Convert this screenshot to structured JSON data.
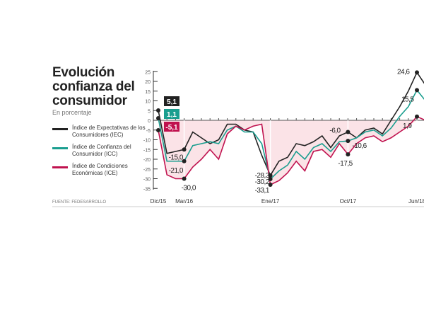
{
  "chart_data": {
    "type": "line",
    "title": "Evolución confianza del consumidor",
    "subtitle": "En porcentaje",
    "source": "FUENTE: FEDESARROLLO",
    "ylim": [
      -35,
      25
    ],
    "yticks": [
      25,
      20,
      15,
      10,
      5,
      0,
      -5,
      -10,
      -15,
      -20,
      -25,
      -30,
      -35
    ],
    "xtick_labels": [
      {
        "i": 0,
        "label": "Dic/15"
      },
      {
        "i": 3,
        "label": "Mar/16"
      },
      {
        "i": 13,
        "label": "Ene/17"
      },
      {
        "i": 22,
        "label": "Oct/17"
      },
      {
        "i": 30,
        "label": "Jun/18"
      }
    ],
    "series": [
      {
        "name": "Índice de Expectativas de los Consumidores (IEC)",
        "color": "#222222",
        "values": [
          5.1,
          -17,
          -16,
          -15.0,
          -6,
          -9,
          -12,
          -10,
          -2,
          -2,
          -5,
          -6,
          -18,
          -28.3,
          -21,
          -19,
          -12,
          -13,
          -11,
          -8,
          -14,
          -8,
          -6.0,
          -9,
          -5,
          -4,
          -7,
          0,
          7,
          15,
          24.6,
          18
        ]
      },
      {
        "name": "Índice de Confianza del Consumidor (ICC)",
        "color": "#1a9e8f",
        "values": [
          1.1,
          -21,
          -21,
          -21.0,
          -13,
          -12,
          -11,
          -12,
          -5,
          -3,
          -6,
          -6,
          -12,
          -30.2,
          -26,
          -23,
          -16,
          -20,
          -14,
          -12,
          -16,
          -11,
          -10.6,
          -9,
          -6,
          -5,
          -8,
          -4,
          2,
          7,
          15.5,
          10
        ]
      },
      {
        "name": "Índice de Condiciones Económicas (ICE)",
        "color": "#c0124f",
        "values": [
          -5.1,
          -28,
          -30,
          -30.0,
          -24,
          -20,
          -15,
          -20,
          -7,
          -3,
          -5,
          -3,
          -2,
          -33.1,
          -31,
          -27,
          -21,
          -26,
          -16,
          -15,
          -19,
          -12,
          -17.5,
          -12,
          -9,
          -8,
          -11,
          -9,
          -6,
          -3,
          1.9,
          0
        ]
      }
    ],
    "annotations": [
      {
        "series": 0,
        "i": 0,
        "label": "5,1",
        "boxed": true
      },
      {
        "series": 1,
        "i": 0,
        "label": "1,1",
        "boxed": true
      },
      {
        "series": 2,
        "i": 0,
        "label": "-5,1",
        "boxed": true
      },
      {
        "series": 0,
        "i": 3,
        "label": "-15,0"
      },
      {
        "series": 1,
        "i": 3,
        "label": "-21,0"
      },
      {
        "series": 2,
        "i": 3,
        "label": "-30,0"
      },
      {
        "series": 0,
        "i": 13,
        "label": "-28,3"
      },
      {
        "series": 1,
        "i": 13,
        "label": "-30,2"
      },
      {
        "series": 2,
        "i": 13,
        "label": "-33,1"
      },
      {
        "series": 0,
        "i": 22,
        "label": "-6,0"
      },
      {
        "series": 1,
        "i": 22,
        "label": "-10,6"
      },
      {
        "series": 2,
        "i": 22,
        "label": "-17,5"
      },
      {
        "series": 0,
        "i": 30,
        "label": "24,6"
      },
      {
        "series": 1,
        "i": 30,
        "label": "15,5"
      },
      {
        "series": 2,
        "i": 30,
        "label": "1,9"
      }
    ]
  }
}
